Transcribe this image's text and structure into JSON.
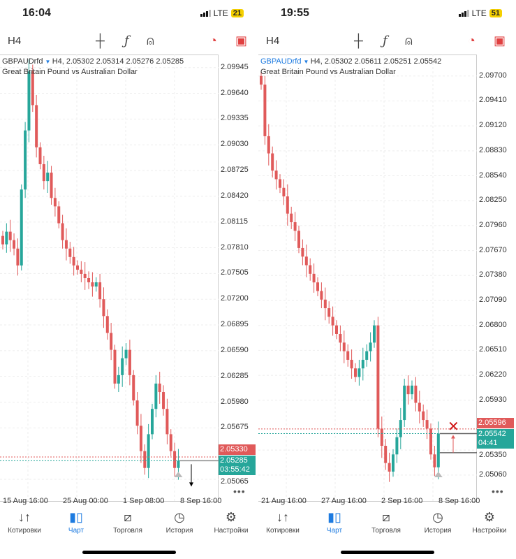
{
  "colors": {
    "bull": "#26a69a",
    "bear": "#e05a5a",
    "accent": "#1e7be0"
  },
  "nav": [
    {
      "label": "Котировки",
      "icon": "quotes-icon"
    },
    {
      "label": "Чарт",
      "icon": "chart-icon"
    },
    {
      "label": "Торговля",
      "icon": "trade-icon"
    },
    {
      "label": "История",
      "icon": "history-icon"
    },
    {
      "label": "Настройки",
      "icon": "settings-icon"
    }
  ],
  "panels": [
    {
      "time": "16:04",
      "network": "LTE",
      "battery": "21",
      "timeframe": "H4",
      "symbol": "GBPAUDrfd",
      "ohlc": "H4, 2.05302 2.05314 2.05276 2.05285",
      "description": "Great Britain Pound vs Australian Dollar",
      "price_axis": [
        "2.09945",
        "2.09640",
        "2.09335",
        "2.09030",
        "2.08725",
        "2.08420",
        "2.08115",
        "2.07810",
        "2.07505",
        "2.07200",
        "2.06895",
        "2.06590",
        "2.06285",
        "2.05980",
        "2.05675",
        "2.05065"
      ],
      "time_axis": [
        "15 Aug 16:00",
        "25 Aug 00:00",
        "1 Sep 08:00",
        "8 Sep 16:00"
      ],
      "ask_label": "2.05330",
      "bid_label": "2.05285",
      "countdown": "03:55:42",
      "more": "•••",
      "chart_data": {
        "type": "candlestick",
        "ylim": [
          2.048,
          2.101
        ],
        "closes": [
          2.0785,
          2.08,
          2.079,
          2.078,
          2.076,
          2.085,
          2.092,
          2.099,
          2.095,
          2.09,
          2.088,
          2.086,
          2.087,
          2.084,
          2.083,
          2.081,
          2.079,
          2.078,
          2.077,
          2.076,
          2.0755,
          2.075,
          2.0745,
          2.074,
          2.0735,
          2.074,
          2.072,
          2.07,
          2.068,
          2.066,
          2.062,
          2.063,
          2.065,
          2.066,
          2.063,
          2.06,
          2.057,
          2.054,
          2.052,
          2.056,
          2.059,
          2.062,
          2.061,
          2.059,
          2.056,
          2.054,
          2.052,
          2.05285
        ],
        "ask": 2.0533,
        "bid": 2.05285
      }
    },
    {
      "time": "19:55",
      "network": "LTE",
      "battery": "51",
      "timeframe": "H4",
      "symbol": "GBPAUDrfd",
      "ohlc": "H4, 2.05302 2.05611 2.05251 2.05542",
      "description": "Great Britain Pound vs Australian Dollar",
      "price_axis": [
        "2.09700",
        "2.09410",
        "2.09120",
        "2.08830",
        "2.08540",
        "2.08250",
        "2.07960",
        "2.07670",
        "2.07380",
        "2.07090",
        "2.06800",
        "2.06510",
        "2.06220",
        "2.05930",
        "2.05350",
        "2.05060"
      ],
      "time_axis": [
        "21 Aug 16:00",
        "27 Aug 16:00",
        "2 Sep 16:00",
        "8 Sep 16:00"
      ],
      "ask_label": "2.05596",
      "bid_label": "2.05542",
      "countdown": "04:41",
      "more": "•••",
      "chart_data": {
        "type": "candlestick",
        "ylim": [
          2.0475,
          2.0995
        ],
        "closes": [
          2.096,
          2.09,
          2.088,
          2.086,
          2.085,
          2.084,
          2.083,
          2.081,
          2.08,
          2.079,
          2.077,
          2.076,
          2.075,
          2.074,
          2.073,
          2.072,
          2.071,
          2.07,
          2.069,
          2.068,
          2.067,
          2.066,
          2.065,
          2.064,
          2.063,
          2.062,
          2.063,
          2.064,
          2.065,
          2.066,
          2.068,
          2.056,
          2.054,
          2.052,
          2.051,
          2.053,
          2.055,
          2.057,
          2.061,
          2.06,
          2.061,
          2.059,
          2.058,
          2.057,
          2.056,
          2.053,
          2.0515,
          2.05542
        ],
        "ask": 2.05596,
        "bid": 2.05542
      }
    }
  ]
}
